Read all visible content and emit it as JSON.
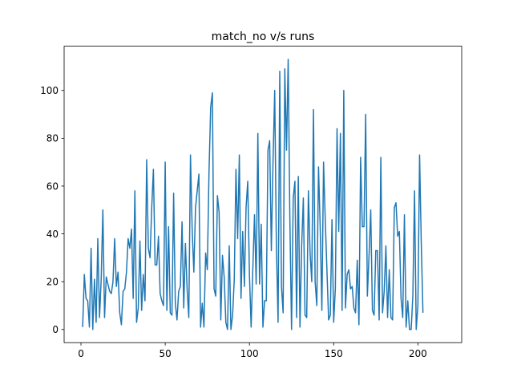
{
  "chart_data": {
    "type": "line",
    "title": "match_no v/s runs",
    "xlabel": "",
    "ylabel": "",
    "xlim": [
      -10,
      226
    ],
    "ylim": [
      -5.5,
      118.5
    ],
    "xticks": [
      0,
      50,
      100,
      150,
      200
    ],
    "yticks": [
      0,
      20,
      40,
      60,
      80,
      100
    ],
    "grid": false,
    "legend": "none",
    "colors": {
      "series": "#1f77b4"
    },
    "x_start": 1,
    "x_step": 1,
    "values": [
      1,
      23,
      13,
      12,
      1,
      34,
      0,
      21,
      3,
      38,
      5,
      21,
      50,
      5,
      22,
      19,
      16,
      15,
      20,
      38,
      18,
      24,
      7,
      2,
      16,
      17,
      24,
      38,
      34,
      42,
      13,
      58,
      3,
      9,
      37,
      8,
      23,
      12,
      71,
      34,
      30,
      51,
      67,
      27,
      27,
      39,
      15,
      12,
      10,
      70,
      8,
      43,
      7,
      6,
      57,
      11,
      4,
      16,
      18,
      45,
      9,
      36,
      17,
      5,
      73,
      42,
      24,
      51,
      58,
      65,
      1,
      11,
      1,
      32,
      25,
      66,
      93,
      99,
      17,
      14,
      56,
      49,
      4,
      31,
      22,
      3,
      0,
      35,
      0,
      6,
      21,
      67,
      38,
      73,
      13,
      41,
      18,
      51,
      62,
      23,
      1,
      25,
      48,
      19,
      82,
      19,
      44,
      1,
      12,
      12,
      75,
      79,
      33,
      70,
      100,
      35,
      3,
      108,
      18,
      7,
      109,
      75,
      113,
      46,
      0,
      55,
      62,
      5,
      64,
      1,
      35,
      55,
      6,
      5,
      58,
      32,
      20,
      92,
      20,
      10,
      68,
      43,
      8,
      70,
      46,
      25,
      4,
      6,
      46,
      3,
      17,
      84,
      41,
      82,
      8,
      100,
      9,
      23,
      25,
      17,
      18,
      9,
      7,
      29,
      2,
      72,
      43,
      43,
      90,
      14,
      31,
      50,
      8,
      6,
      33,
      33,
      4,
      72,
      7,
      16,
      35,
      5,
      25,
      5,
      4,
      51,
      53,
      39,
      41,
      13,
      5,
      48,
      1,
      12,
      0,
      0,
      14,
      58,
      0,
      10,
      73,
      36,
      7
    ]
  }
}
